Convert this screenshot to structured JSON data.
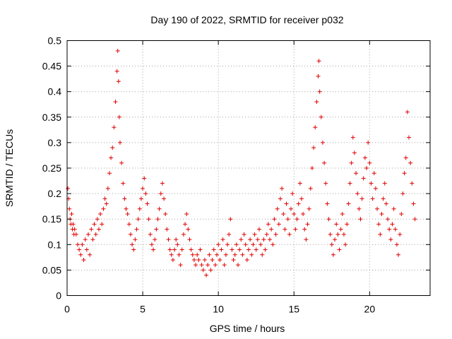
{
  "chart_data": {
    "type": "scatter",
    "title": "Day 190 of 2022, SRMTID for receiver p032",
    "xlabel": "GPS time / hours",
    "ylabel": "SRMTID / TECUs",
    "xlim": [
      0,
      24
    ],
    "ylim": [
      0,
      0.5
    ],
    "xticks": [
      0,
      5,
      10,
      15,
      20
    ],
    "xtick_labels": [
      "0",
      "5",
      "10",
      "15",
      "20"
    ],
    "yticks": [
      0,
      0.05,
      0.1,
      0.15,
      0.2,
      0.25,
      0.3,
      0.35,
      0.4,
      0.45,
      0.5
    ],
    "ytick_labels": [
      "0",
      "0.05",
      "0.1",
      "0.15",
      "0.2",
      "0.25",
      "0.3",
      "0.35",
      "0.4",
      "0.45",
      "0.5"
    ],
    "grid": true,
    "marker": "+",
    "color": "#e00000",
    "series": [
      {
        "name": "SRMTID",
        "points": [
          [
            0.05,
            0.21
          ],
          [
            0.1,
            0.19
          ],
          [
            0.15,
            0.17
          ],
          [
            0.2,
            0.15
          ],
          [
            0.25,
            0.14
          ],
          [
            0.3,
            0.16
          ],
          [
            0.35,
            0.13
          ],
          [
            0.4,
            0.14
          ],
          [
            0.45,
            0.12
          ],
          [
            0.5,
            0.13
          ],
          [
            0.6,
            0.12
          ],
          [
            0.7,
            0.1
          ],
          [
            0.8,
            0.09
          ],
          [
            0.9,
            0.08
          ],
          [
            1.0,
            0.1
          ],
          [
            1.1,
            0.07
          ],
          [
            1.2,
            0.11
          ],
          [
            1.3,
            0.09
          ],
          [
            1.4,
            0.12
          ],
          [
            1.5,
            0.08
          ],
          [
            1.6,
            0.13
          ],
          [
            1.7,
            0.11
          ],
          [
            1.8,
            0.14
          ],
          [
            1.9,
            0.12
          ],
          [
            2.0,
            0.15
          ],
          [
            2.1,
            0.13
          ],
          [
            2.2,
            0.16
          ],
          [
            2.3,
            0.14
          ],
          [
            2.4,
            0.17
          ],
          [
            2.5,
            0.19
          ],
          [
            2.6,
            0.18
          ],
          [
            2.7,
            0.21
          ],
          [
            2.8,
            0.24
          ],
          [
            2.9,
            0.27
          ],
          [
            3.0,
            0.29
          ],
          [
            3.1,
            0.33
          ],
          [
            3.2,
            0.38
          ],
          [
            3.3,
            0.44
          ],
          [
            3.35,
            0.48
          ],
          [
            3.4,
            0.42
          ],
          [
            3.45,
            0.35
          ],
          [
            3.5,
            0.3
          ],
          [
            3.6,
            0.26
          ],
          [
            3.7,
            0.22
          ],
          [
            3.8,
            0.19
          ],
          [
            3.9,
            0.17
          ],
          [
            4.0,
            0.16
          ],
          [
            4.1,
            0.14
          ],
          [
            4.2,
            0.12
          ],
          [
            4.3,
            0.1
          ],
          [
            4.4,
            0.09
          ],
          [
            4.5,
            0.11
          ],
          [
            4.6,
            0.13
          ],
          [
            4.7,
            0.15
          ],
          [
            4.8,
            0.17
          ],
          [
            4.9,
            0.19
          ],
          [
            5.0,
            0.21
          ],
          [
            5.1,
            0.23
          ],
          [
            5.2,
            0.2
          ],
          [
            5.3,
            0.18
          ],
          [
            5.4,
            0.15
          ],
          [
            5.5,
            0.12
          ],
          [
            5.6,
            0.1
          ],
          [
            5.7,
            0.09
          ],
          [
            5.8,
            0.11
          ],
          [
            5.9,
            0.13
          ],
          [
            6.0,
            0.15
          ],
          [
            6.1,
            0.17
          ],
          [
            6.2,
            0.2
          ],
          [
            6.3,
            0.22
          ],
          [
            6.4,
            0.19
          ],
          [
            6.5,
            0.16
          ],
          [
            6.6,
            0.13
          ],
          [
            6.7,
            0.11
          ],
          [
            6.8,
            0.09
          ],
          [
            6.9,
            0.08
          ],
          [
            7.0,
            0.07
          ],
          [
            7.1,
            0.09
          ],
          [
            7.2,
            0.11
          ],
          [
            7.3,
            0.1
          ],
          [
            7.4,
            0.08
          ],
          [
            7.5,
            0.06
          ],
          [
            7.6,
            0.09
          ],
          [
            7.7,
            0.12
          ],
          [
            7.8,
            0.14
          ],
          [
            7.9,
            0.16
          ],
          [
            8.0,
            0.13
          ],
          [
            8.1,
            0.11
          ],
          [
            8.2,
            0.09
          ],
          [
            8.3,
            0.08
          ],
          [
            8.4,
            0.07
          ],
          [
            8.5,
            0.06
          ],
          [
            8.6,
            0.08
          ],
          [
            8.7,
            0.07
          ],
          [
            8.8,
            0.09
          ],
          [
            8.9,
            0.06
          ],
          [
            9.0,
            0.05
          ],
          [
            9.1,
            0.07
          ],
          [
            9.2,
            0.04
          ],
          [
            9.3,
            0.06
          ],
          [
            9.4,
            0.08
          ],
          [
            9.5,
            0.05
          ],
          [
            9.6,
            0.07
          ],
          [
            9.7,
            0.09
          ],
          [
            9.8,
            0.06
          ],
          [
            9.9,
            0.08
          ],
          [
            10.0,
            0.1
          ],
          [
            10.1,
            0.07
          ],
          [
            10.2,
            0.09
          ],
          [
            10.3,
            0.11
          ],
          [
            10.4,
            0.06
          ],
          [
            10.5,
            0.08
          ],
          [
            10.6,
            0.1
          ],
          [
            10.7,
            0.12
          ],
          [
            10.8,
            0.15
          ],
          [
            10.9,
            0.09
          ],
          [
            11.0,
            0.07
          ],
          [
            11.1,
            0.08
          ],
          [
            11.2,
            0.1
          ],
          [
            11.3,
            0.06
          ],
          [
            11.4,
            0.09
          ],
          [
            11.5,
            0.11
          ],
          [
            11.6,
            0.08
          ],
          [
            11.7,
            0.12
          ],
          [
            11.8,
            0.1
          ],
          [
            11.9,
            0.07
          ],
          [
            12.0,
            0.09
          ],
          [
            12.1,
            0.11
          ],
          [
            12.2,
            0.08
          ],
          [
            12.3,
            0.1
          ],
          [
            12.4,
            0.12
          ],
          [
            12.5,
            0.09
          ],
          [
            12.6,
            0.11
          ],
          [
            12.7,
            0.13
          ],
          [
            12.8,
            0.1
          ],
          [
            12.9,
            0.08
          ],
          [
            13.0,
            0.11
          ],
          [
            13.1,
            0.09
          ],
          [
            13.2,
            0.12
          ],
          [
            13.3,
            0.14
          ],
          [
            13.4,
            0.11
          ],
          [
            13.5,
            0.13
          ],
          [
            13.6,
            0.1
          ],
          [
            13.7,
            0.15
          ],
          [
            13.8,
            0.12
          ],
          [
            13.9,
            0.17
          ],
          [
            14.0,
            0.14
          ],
          [
            14.1,
            0.19
          ],
          [
            14.2,
            0.21
          ],
          [
            14.3,
            0.16
          ],
          [
            14.4,
            0.13
          ],
          [
            14.5,
            0.18
          ],
          [
            14.6,
            0.15
          ],
          [
            14.7,
            0.12
          ],
          [
            14.8,
            0.17
          ],
          [
            14.9,
            0.2
          ],
          [
            15.0,
            0.16
          ],
          [
            15.1,
            0.13
          ],
          [
            15.2,
            0.15
          ],
          [
            15.3,
            0.18
          ],
          [
            15.4,
            0.22
          ],
          [
            15.5,
            0.19
          ],
          [
            15.6,
            0.16
          ],
          [
            15.7,
            0.13
          ],
          [
            15.8,
            0.11
          ],
          [
            15.9,
            0.14
          ],
          [
            16.0,
            0.17
          ],
          [
            16.1,
            0.21
          ],
          [
            16.2,
            0.25
          ],
          [
            16.3,
            0.29
          ],
          [
            16.4,
            0.33
          ],
          [
            16.5,
            0.38
          ],
          [
            16.6,
            0.43
          ],
          [
            16.65,
            0.46
          ],
          [
            16.7,
            0.4
          ],
          [
            16.8,
            0.35
          ],
          [
            16.9,
            0.3
          ],
          [
            17.0,
            0.26
          ],
          [
            17.1,
            0.22
          ],
          [
            17.2,
            0.18
          ],
          [
            17.3,
            0.15
          ],
          [
            17.4,
            0.12
          ],
          [
            17.5,
            0.1
          ],
          [
            17.6,
            0.08
          ],
          [
            17.7,
            0.11
          ],
          [
            17.8,
            0.14
          ],
          [
            17.9,
            0.12
          ],
          [
            18.0,
            0.09
          ],
          [
            18.1,
            0.13
          ],
          [
            18.2,
            0.16
          ],
          [
            18.3,
            0.12
          ],
          [
            18.4,
            0.1
          ],
          [
            18.5,
            0.14
          ],
          [
            18.6,
            0.18
          ],
          [
            18.7,
            0.22
          ],
          [
            18.8,
            0.26
          ],
          [
            18.9,
            0.31
          ],
          [
            19.0,
            0.28
          ],
          [
            19.1,
            0.24
          ],
          [
            19.2,
            0.2
          ],
          [
            19.3,
            0.17
          ],
          [
            19.4,
            0.15
          ],
          [
            19.5,
            0.19
          ],
          [
            19.6,
            0.23
          ],
          [
            19.7,
            0.27
          ],
          [
            19.8,
            0.25
          ],
          [
            19.9,
            0.3
          ],
          [
            20.0,
            0.26
          ],
          [
            20.1,
            0.22
          ],
          [
            20.2,
            0.19
          ],
          [
            20.3,
            0.24
          ],
          [
            20.4,
            0.21
          ],
          [
            20.5,
            0.17
          ],
          [
            20.6,
            0.14
          ],
          [
            20.7,
            0.12
          ],
          [
            20.8,
            0.16
          ],
          [
            20.9,
            0.19
          ],
          [
            21.0,
            0.22
          ],
          [
            21.1,
            0.18
          ],
          [
            21.2,
            0.15
          ],
          [
            21.3,
            0.13
          ],
          [
            21.4,
            0.11
          ],
          [
            21.5,
            0.14
          ],
          [
            21.6,
            0.17
          ],
          [
            21.7,
            0.13
          ],
          [
            21.8,
            0.1
          ],
          [
            21.9,
            0.08
          ],
          [
            22.0,
            0.12
          ],
          [
            22.1,
            0.16
          ],
          [
            22.2,
            0.2
          ],
          [
            22.3,
            0.24
          ],
          [
            22.4,
            0.27
          ],
          [
            22.5,
            0.36
          ],
          [
            22.6,
            0.31
          ],
          [
            22.7,
            0.26
          ],
          [
            22.8,
            0.22
          ],
          [
            22.9,
            0.18
          ],
          [
            23.0,
            0.15
          ]
        ]
      }
    ]
  }
}
